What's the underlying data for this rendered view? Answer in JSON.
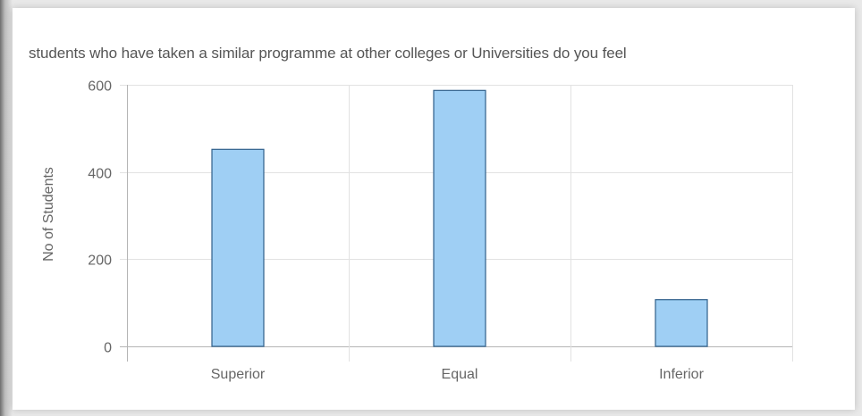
{
  "chart_data": {
    "type": "bar",
    "title": "students who have taken a similar programme at other colleges or Universities do you feel",
    "ylabel": "No of Students",
    "xlabel": "",
    "categories": [
      "Superior",
      "Equal",
      "Inferior"
    ],
    "values": [
      452,
      587,
      107
    ],
    "ylim": [
      0,
      600
    ],
    "yticks": [
      0,
      200,
      400,
      600
    ],
    "grid": true,
    "bar_fill": "#9fcff4",
    "bar_stroke": "#2f5f8a",
    "grid_color": "#e2e2e2",
    "axis_color": "#b5b5b5"
  }
}
